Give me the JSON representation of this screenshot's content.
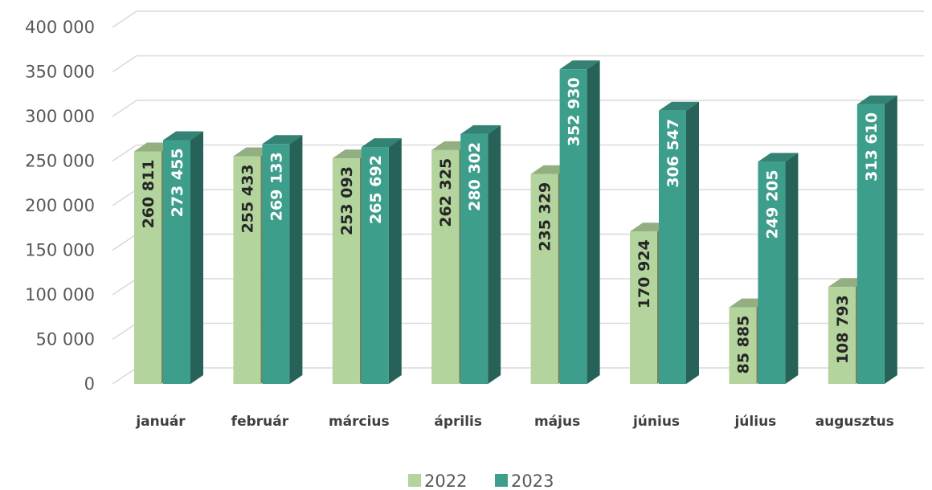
{
  "chart_data": {
    "type": "bar",
    "title": "",
    "xlabel": "",
    "ylabel": "",
    "categories": [
      "január",
      "február",
      "március",
      "április",
      "május",
      "június",
      "július",
      "augusztus"
    ],
    "series": [
      {
        "name": "2022",
        "color": "#b3d49d",
        "values": [
          260811,
          255433,
          253093,
          262325,
          235329,
          170924,
          85885,
          108793
        ],
        "labels": [
          "260 811",
          "255 433",
          "253 093",
          "262 325",
          "235 329",
          "170 924",
          "85 885",
          "108 793"
        ]
      },
      {
        "name": "2023",
        "color": "#3e9e8c",
        "values": [
          273455,
          269133,
          265692,
          280302,
          352930,
          306547,
          249205,
          313610
        ],
        "labels": [
          "273 455",
          "269 133",
          "265 692",
          "280 302",
          "352 930",
          "306 547",
          "249 205",
          "313 610"
        ]
      }
    ],
    "ylim": [
      0,
      400000
    ],
    "yticks": [
      0,
      50000,
      100000,
      150000,
      200000,
      250000,
      300000,
      350000,
      400000
    ],
    "ytick_labels": [
      "0",
      "50 000",
      "100 000",
      "150 000",
      "200 000",
      "250 000",
      "300 000",
      "350 000",
      "400 000"
    ],
    "grid": true,
    "style": "3d-clustered-column",
    "legend_position": "bottom"
  }
}
